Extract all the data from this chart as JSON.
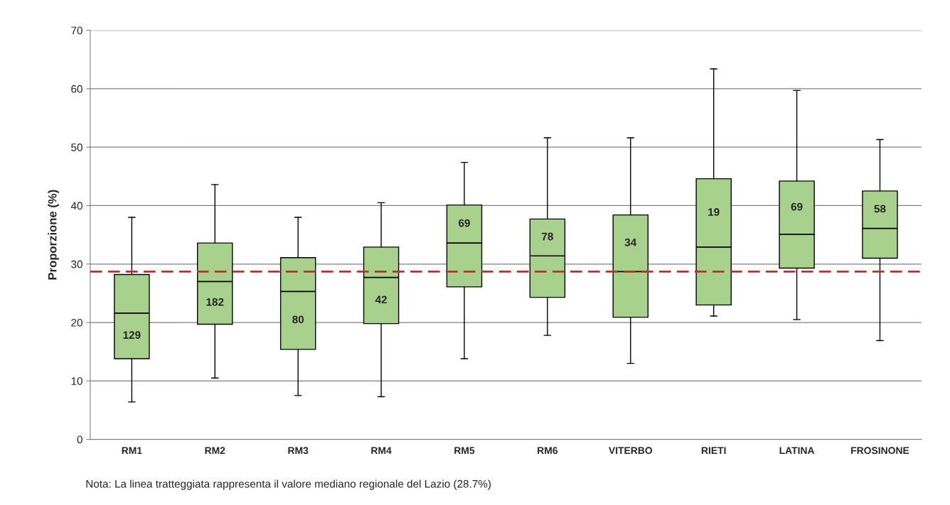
{
  "chart_data": {
    "type": "box",
    "ylabel": "Proporzione (%)",
    "categories": [
      "RM1",
      "RM2",
      "RM3",
      "RM4",
      "RM5",
      "RM6",
      "VITERBO",
      "RIETI",
      "LATINA",
      "FROSINONE"
    ],
    "boxes": [
      {
        "low": 6.4,
        "q1": 13.8,
        "median": 21.6,
        "q3": 28.2,
        "high": 38.0
      },
      {
        "low": 10.5,
        "q1": 19.7,
        "median": 27.0,
        "q3": 33.6,
        "high": 43.6
      },
      {
        "low": 7.5,
        "q1": 15.4,
        "median": 25.3,
        "q3": 31.1,
        "high": 38.0
      },
      {
        "low": 7.3,
        "q1": 19.8,
        "median": 27.7,
        "q3": 32.9,
        "high": 40.5
      },
      {
        "low": 13.8,
        "q1": 26.1,
        "median": 33.6,
        "q3": 40.1,
        "high": 47.4
      },
      {
        "low": 17.8,
        "q1": 24.3,
        "median": 31.4,
        "q3": 37.7,
        "high": 51.6
      },
      {
        "low": 13.0,
        "q1": 20.9,
        "median": 28.7,
        "q3": 38.4,
        "high": 51.6
      },
      {
        "low": 21.1,
        "q1": 23.0,
        "median": 32.9,
        "q3": 44.6,
        "high": 63.4
      },
      {
        "low": 20.5,
        "q1": 29.3,
        "median": 35.1,
        "q3": 44.2,
        "high": 59.7
      },
      {
        "low": 16.9,
        "q1": 31.0,
        "median": 36.1,
        "q3": 42.5,
        "high": 51.3
      }
    ],
    "value_labels": [
      "129",
      "182",
      "80",
      "42",
      "69",
      "78",
      "34",
      "19",
      "69",
      "58"
    ],
    "color": "#a9d18e",
    "ylim": [
      0,
      70
    ],
    "yticks": [
      0,
      10,
      20,
      30,
      40,
      50,
      60,
      70
    ],
    "grid": "y",
    "ref_lines": [
      {
        "axis": "y",
        "value": 28.7,
        "color": "#e02020",
        "line_style": "dashed"
      }
    ],
    "annotations": [
      "Nota: La linea tratteggiata rappresenta il valore mediano regionale del Lazio (28.7%)"
    ]
  }
}
